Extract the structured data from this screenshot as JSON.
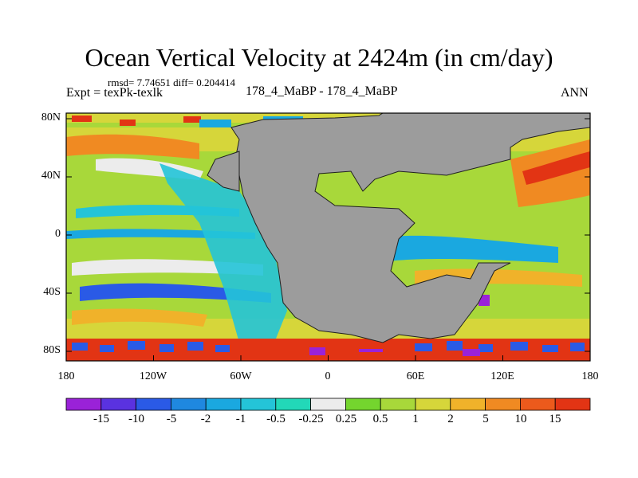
{
  "title": "Ocean Vertical Velocity at 2424m (in cm/day)",
  "stats": "rmsd= 7.74651 diff= 0.204414",
  "expt": "Expt = texPk-texlk",
  "cases": "178_4_MaBP - 178_4_MaBP",
  "season": "ANN",
  "lat_ticks": [
    "80N",
    "40N",
    "0",
    "40S",
    "80S"
  ],
  "lon_ticks": [
    "180",
    "120W",
    "60W",
    "0",
    "60E",
    "120E",
    "180"
  ],
  "colorbar": {
    "labels": [
      "-15",
      "-10",
      "-5",
      "-2",
      "-1",
      "-0.5",
      "-0.25",
      "0.25",
      "0.5",
      "1",
      "2",
      "5",
      "10",
      "15"
    ],
    "colors": [
      "#9a22d8",
      "#5a32e0",
      "#2a5ae6",
      "#1f88e0",
      "#1aa8e0",
      "#24c4d8",
      "#22d8b8",
      "#ececec",
      "#74d52e",
      "#a8d83a",
      "#d6d63a",
      "#f0b22a",
      "#f08a22",
      "#ec5a1c",
      "#e23414"
    ]
  },
  "colors": {
    "land": "#9c9c9c",
    "coast": "#202020"
  }
}
